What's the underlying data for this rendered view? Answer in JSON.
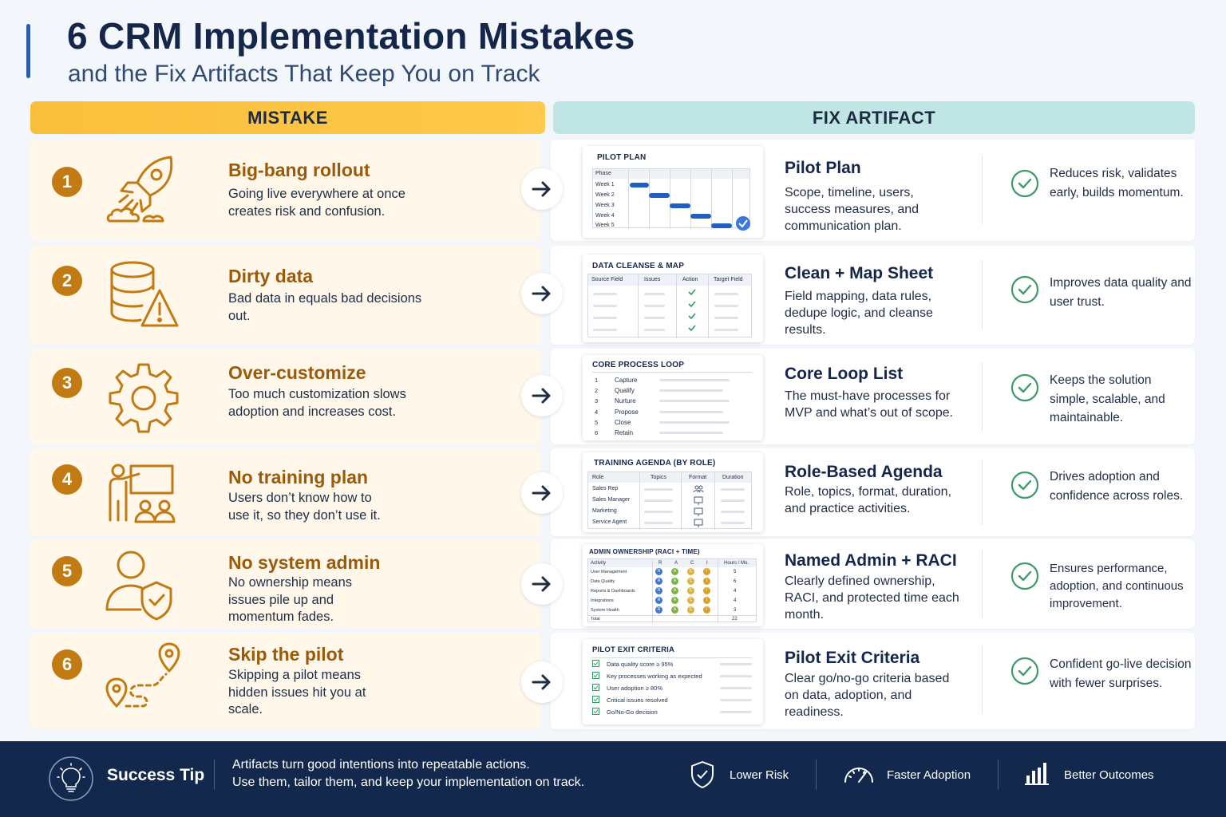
{
  "header": {
    "title": "6 CRM Implementation Mistakes",
    "subtitle": "and the Fix Artifacts That Keep You on Track"
  },
  "columns": {
    "mistake": "MISTAKE",
    "fix": "FIX ARTIFACT"
  },
  "rows": [
    {
      "num": "1",
      "icon": "rocket-icon",
      "mistake_title": "Big-bang rollout",
      "mistake_desc": "Going live everywhere at once creates risk and confusion.",
      "fix_title": "Pilot Plan",
      "fix_desc": "Scope, timeline, users, success measures, and communication plan.",
      "benefit": "Reduces risk, validates early, builds momentum.",
      "thumb": {
        "title": "PILOT PLAN",
        "header": "Phase",
        "rows": [
          "Week 1",
          "Week 2",
          "Week 3",
          "Week 4",
          "Week 5"
        ]
      }
    },
    {
      "num": "2",
      "icon": "database-warning-icon",
      "mistake_title": "Dirty data",
      "mistake_desc": "Bad data in equals bad decisions out.",
      "fix_title": "Clean + Map Sheet",
      "fix_desc": "Field mapping, data rules, dedupe logic, and cleanse results.",
      "benefit": "Improves data quality and user trust.",
      "thumb": {
        "title": "DATA CLEANSE & MAP",
        "cols": [
          "Source Field",
          "Issues",
          "Action",
          "Target Field"
        ]
      }
    },
    {
      "num": "3",
      "icon": "gear-icon",
      "mistake_title": "Over-customize",
      "mistake_desc": "Too much customization slows adoption and increases cost.",
      "fix_title": "Core Loop List",
      "fix_desc": "The must-have processes for MVP and what’s out of scope.",
      "benefit": "Keeps the solution simple, scalable, and maintainable.",
      "thumb": {
        "title": "CORE PROCESS LOOP",
        "items": [
          [
            "1",
            "Capture"
          ],
          [
            "2",
            "Qualify"
          ],
          [
            "3",
            "Nurture"
          ],
          [
            "4",
            "Propose"
          ],
          [
            "5",
            "Close"
          ],
          [
            "6",
            "Retain"
          ]
        ]
      }
    },
    {
      "num": "4",
      "icon": "presenter-icon",
      "mistake_title": "No training plan",
      "mistake_desc": "Users don’t know how to use it, so they don’t use it.",
      "fix_title": "Role-Based Agenda",
      "fix_desc": "Role, topics, format, duration, and practice activities.",
      "benefit": "Drives adoption and confidence across roles.",
      "thumb": {
        "title": "TRAINING AGENDA (BY ROLE)",
        "cols": [
          "Role",
          "Topics",
          "Format",
          "Duration"
        ],
        "rows": [
          "Sales Rep",
          "Sales Manager",
          "Marketing",
          "Service Agent"
        ]
      }
    },
    {
      "num": "5",
      "icon": "user-shield-icon",
      "mistake_title": "No system admin",
      "mistake_desc": "No ownership means issues pile up and momentum fades.",
      "fix_title": "Named Admin + RACI",
      "fix_desc": "Clearly defined ownership, RACI, and protected time each month.",
      "benefit": "Ensures performance, adoption, and continuous improvement.",
      "thumb": {
        "title": "ADMIN OWNERSHIP (RACI + TIME)",
        "cols": [
          "Activity",
          "R",
          "A",
          "C",
          "I",
          "Hours / Mo."
        ],
        "rows": [
          [
            "User Management",
            "5"
          ],
          [
            "Data Quality",
            "6"
          ],
          [
            "Reports & Dashboards",
            "4"
          ],
          [
            "Integrations",
            "4"
          ],
          [
            "System Health",
            "3"
          ]
        ],
        "total_label": "Total",
        "total": "22",
        "badges": [
          "R",
          "A",
          "C",
          "I"
        ]
      }
    },
    {
      "num": "6",
      "icon": "route-pins-icon",
      "mistake_title": "Skip the pilot",
      "mistake_desc": "Skipping a pilot means hidden issues hit you at scale.",
      "fix_title": "Pilot Exit Criteria",
      "fix_desc": "Clear go/no-go criteria based on data, adoption, and readiness.",
      "benefit": "Confident go-live decision with fewer surprises.",
      "thumb": {
        "title": "PILOT EXIT CRITERIA",
        "items": [
          "Data quality score ≥ 95%",
          "Key processes working as expected",
          "User adoption ≥ 80%",
          "Critical issues resolved",
          "Go/No-Go decision"
        ]
      }
    }
  ],
  "footer": {
    "tip_label": "Success Tip",
    "tip_line1": "Artifacts turn good intentions into repeatable actions.",
    "tip_line2": "Use them, tailor them, and keep your implementation on track.",
    "benefits": [
      "Lower Risk",
      "Faster Adoption",
      "Better Outcomes"
    ]
  },
  "colors": {
    "accent": "#1f5fbf",
    "mistake_orange": "#c27a12",
    "mistake_header": "#ffc94a",
    "fix_header": "#bfe5e5",
    "check_green": "#3d9a6a",
    "footer_bg": "#13284d",
    "navy": "#14264a"
  }
}
